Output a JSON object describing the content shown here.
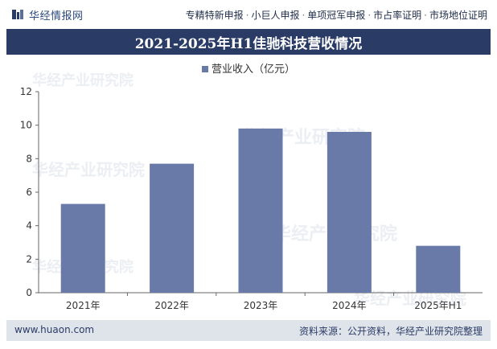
{
  "brand": {
    "name": "华经情报网"
  },
  "tags": [
    "专精特新申报",
    "小巨人申报",
    "单项冠军申报",
    "市占率证明",
    "市场地位证明"
  ],
  "tag_separator": "·",
  "watermark": "华经产业研究院",
  "footer": {
    "site": "www.huaon.com",
    "source": "资料来源：公开资料，华经产业研究院整理"
  },
  "colors": {
    "bar": "#6a7aa8",
    "title_bg": "#2a3c66",
    "footer_bg": "#dfe3ea"
  },
  "chart_data": {
    "type": "bar",
    "title": "2021-2025年H1佳驰科技营收情况",
    "categories": [
      "2021年",
      "2022年",
      "2023年",
      "2024年",
      "2025年H1"
    ],
    "series": [
      {
        "name": "营业收入（亿元）",
        "values": [
          5.3,
          7.7,
          9.8,
          9.6,
          2.8
        ]
      }
    ],
    "ylim": [
      0,
      12
    ],
    "yticks": [
      0,
      2,
      4,
      6,
      8,
      10,
      12
    ],
    "legend": "top-center",
    "grid": false
  }
}
